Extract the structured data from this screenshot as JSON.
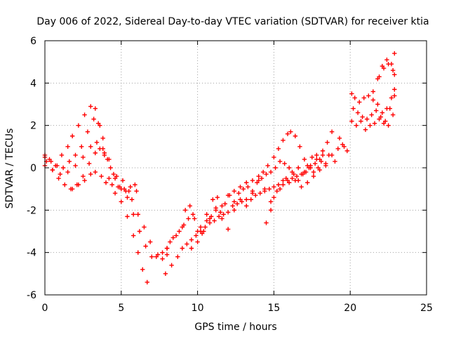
{
  "chart_data": {
    "type": "scatter",
    "title": "Day 006 of 2022, Sidereal Day-to-day VTEC variation (SDTVAR) for receiver ktia",
    "xlabel": "GPS time / hours",
    "ylabel": "SDTVAR / TECUs",
    "xlim": [
      0,
      25
    ],
    "ylim": [
      -6,
      6
    ],
    "xticks": [
      0,
      5,
      10,
      15,
      20,
      25
    ],
    "yticks": [
      -6,
      -4,
      -2,
      0,
      2,
      4,
      6
    ],
    "xtick_labels": [
      "0",
      "5",
      "10",
      "15",
      "20",
      "25"
    ],
    "ytick_labels": [
      "-6",
      "-4",
      "-2",
      "0",
      "2",
      "4",
      "6"
    ],
    "grid": true,
    "legend": "none",
    "marker": "plus",
    "color": "#ff0000",
    "series": [
      {
        "x": [
          0.0,
          0.3,
          0.7,
          1.1,
          1.5,
          1.8,
          2.2,
          2.6,
          3.0,
          3.3,
          3.6,
          3.9,
          4.2,
          4.6,
          5.0,
          5.4,
          5.8,
          6.1,
          6.4,
          6.7
        ],
        "y": [
          0.5,
          0.4,
          0.1,
          0.6,
          1.0,
          1.5,
          2.0,
          2.5,
          2.9,
          2.8,
          2.0,
          0.7,
          -0.5,
          -1.2,
          -1.6,
          -2.3,
          -3.2,
          -4.0,
          -4.8,
          -5.4
        ]
      },
      {
        "x": [
          0.0,
          0.4,
          0.8,
          1.2,
          1.6,
          2.0,
          2.4,
          2.8,
          3.2,
          3.5,
          3.8,
          4.2,
          4.6,
          5.0,
          5.4,
          5.8,
          6.2,
          6.6,
          7.0,
          7.4,
          7.7,
          8.0
        ],
        "y": [
          0.6,
          0.3,
          0.1,
          0.0,
          0.3,
          0.6,
          1.0,
          1.7,
          2.3,
          2.1,
          1.4,
          0.4,
          -0.5,
          -1.0,
          -1.4,
          -2.2,
          -3.0,
          -3.7,
          -4.2,
          -4.1,
          -4.0,
          -3.8
        ]
      },
      {
        "x": [
          0.0,
          0.5,
          1.0,
          1.5,
          2.0,
          2.5,
          3.0,
          3.4,
          3.8,
          4.1,
          4.5,
          4.9,
          5.3,
          5.7,
          6.1,
          6.5,
          6.9,
          7.3,
          7.7,
          8.0
        ],
        "y": [
          0.1,
          -0.1,
          -0.3,
          -0.2,
          0.1,
          0.5,
          1.0,
          1.2,
          0.9,
          0.4,
          -0.3,
          -0.9,
          -1.1,
          -1.5,
          -2.2,
          -2.8,
          -3.5,
          -4.2,
          -4.3,
          -4.1
        ]
      },
      {
        "x": [
          0.1,
          0.5,
          0.9,
          1.3,
          1.7,
          2.1,
          2.5,
          2.9,
          3.3,
          3.6,
          3.9,
          4.3,
          4.7,
          5.1,
          5.5,
          5.9
        ],
        "y": [
          0.3,
          -0.1,
          -0.5,
          -0.8,
          -1.0,
          -0.8,
          -0.4,
          0.2,
          0.7,
          0.9,
          0.6,
          0.0,
          -0.4,
          -0.6,
          -1.1,
          -0.8
        ]
      },
      {
        "x": [
          1.8,
          2.2,
          2.6,
          3.0,
          3.3,
          3.7,
          4.0,
          4.4,
          4.8,
          5.2,
          5.6,
          6.0
        ],
        "y": [
          -1.0,
          -0.8,
          -0.6,
          -0.3,
          -0.2,
          -0.4,
          -0.7,
          -0.8,
          -0.9,
          -1.0,
          -0.9,
          -1.1
        ]
      },
      {
        "x": [
          7.9,
          8.3,
          8.7,
          9.0,
          9.3,
          9.6,
          9.9,
          10.2,
          10.5,
          10.8,
          11.1,
          11.4,
          11.7,
          12.0,
          12.3,
          12.6,
          12.9,
          13.2,
          13.5,
          13.8,
          14.1,
          14.4,
          14.7,
          15.0,
          15.3,
          15.6,
          15.9,
          16.2,
          16.5,
          16.8,
          17.1,
          17.4,
          17.7,
          18.0
        ],
        "y": [
          -5.0,
          -4.6,
          -4.2,
          -3.8,
          -3.6,
          -3.4,
          -3.2,
          -3.0,
          -2.8,
          -2.6,
          -2.5,
          -2.3,
          -2.2,
          -2.1,
          -1.8,
          -1.7,
          -1.6,
          -1.5,
          -1.5,
          -1.3,
          -1.2,
          -1.1,
          -1.0,
          -0.9,
          -0.8,
          -0.6,
          -0.6,
          -0.5,
          -0.4,
          -0.3,
          -0.2,
          0.0,
          0.2,
          0.4
        ]
      },
      {
        "x": [
          8.0,
          8.4,
          8.8,
          9.1,
          9.4,
          9.7,
          10.0,
          10.3,
          10.6,
          10.9,
          11.2,
          11.5,
          11.8,
          12.1,
          12.4,
          12.7,
          13.0,
          13.3,
          13.6,
          13.9,
          14.2,
          14.5,
          14.8,
          15.1,
          15.4,
          15.7,
          16.0,
          16.3,
          16.6,
          16.9,
          17.2,
          17.5,
          17.8,
          18.1,
          18.4
        ],
        "y": [
          -3.8,
          -3.3,
          -3.0,
          -2.7,
          -2.4,
          -2.2,
          -3.0,
          -3.1,
          -2.5,
          -2.3,
          -1.9,
          -2.1,
          -1.7,
          -1.3,
          -1.6,
          -1.2,
          -1.0,
          -0.9,
          -1.1,
          -0.7,
          -0.5,
          -0.3,
          -0.2,
          0.0,
          0.3,
          0.2,
          0.0,
          -0.3,
          -0.6,
          -0.3,
          0.1,
          0.5,
          0.6,
          0.3,
          0.1
        ]
      },
      {
        "x": [
          8.2,
          8.6,
          9.0,
          9.2,
          9.5,
          9.8,
          10.2,
          10.6,
          11.0,
          11.3,
          11.6,
          12.0,
          12.4,
          12.8,
          13.2,
          13.6,
          14.0,
          14.3,
          14.6,
          15.0,
          15.3,
          15.6,
          15.9,
          16.1,
          16.4,
          16.7,
          17.0,
          17.3,
          17.6,
          17.9,
          18.2,
          18.5,
          18.8
        ],
        "y": [
          -3.5,
          -3.2,
          -2.8,
          -2.0,
          -1.8,
          -2.4,
          -2.8,
          -2.2,
          -1.5,
          -1.4,
          -1.8,
          -1.3,
          -1.1,
          -0.9,
          -0.7,
          -0.6,
          -0.4,
          -0.2,
          0.1,
          0.5,
          0.9,
          1.3,
          1.6,
          1.7,
          1.5,
          1.0,
          0.4,
          0.0,
          -0.2,
          0.0,
          0.6,
          1.2,
          1.7
        ]
      },
      {
        "x": [
          9.6,
          10.0,
          10.4,
          10.8,
          11.2,
          11.6,
          12.0,
          12.4,
          12.8,
          13.2,
          13.6,
          14.0,
          14.4,
          14.8,
          15.2,
          15.6,
          16.0,
          16.4,
          16.8,
          17.2,
          17.6,
          18.0,
          18.4,
          18.8,
          19.2,
          19.5,
          19.8
        ],
        "y": [
          -3.8,
          -3.5,
          -3.0,
          -2.4,
          -2.0,
          -2.4,
          -2.9,
          -2.0,
          -1.5,
          -1.8,
          -1.2,
          -0.6,
          -1.0,
          -1.6,
          -1.1,
          -0.8,
          -0.7,
          -0.6,
          -0.9,
          -0.7,
          -0.4,
          -0.1,
          0.2,
          0.6,
          0.9,
          1.1,
          0.8
        ]
      },
      {
        "x": [
          14.5,
          14.8,
          15.0,
          15.4,
          15.8,
          16.2,
          16.6,
          17.0,
          17.4,
          17.8,
          18.2,
          18.6,
          19.0,
          19.3,
          19.6
        ],
        "y": [
          -2.6,
          -2.0,
          -1.4,
          -1.0,
          -0.5,
          -0.2,
          0.0,
          -0.2,
          0.1,
          0.4,
          0.8,
          0.6,
          0.3,
          1.4,
          1.0
        ]
      },
      {
        "x": [
          20.1,
          20.3,
          20.6,
          20.9,
          21.2,
          21.5,
          21.8,
          22.1,
          22.4,
          22.7,
          22.9
        ],
        "y": [
          3.5,
          3.3,
          3.1,
          3.3,
          3.4,
          3.2,
          3.0,
          2.6,
          2.8,
          3.3,
          3.7
        ]
      },
      {
        "x": [
          20.2,
          20.5,
          20.8,
          21.1,
          21.4,
          21.7,
          22.0,
          22.3,
          22.6,
          22.9
        ],
        "y": [
          2.8,
          2.6,
          2.4,
          2.3,
          2.5,
          2.7,
          2.4,
          2.2,
          2.8,
          3.4
        ]
      },
      {
        "x": [
          20.1,
          20.4,
          20.7,
          21.0,
          21.3,
          21.6,
          21.9,
          22.2,
          22.5,
          22.8
        ],
        "y": [
          2.2,
          2.0,
          2.2,
          1.8,
          2.0,
          2.1,
          2.3,
          2.1,
          2.0,
          2.5
        ]
      },
      {
        "x": [
          21.5,
          21.8,
          22.1,
          22.4,
          22.7,
          22.9
        ],
        "y": [
          3.6,
          4.2,
          4.8,
          5.1,
          4.9,
          5.4
        ]
      },
      {
        "x": [
          21.9,
          22.2,
          22.5,
          22.8,
          22.9
        ],
        "y": [
          4.3,
          4.7,
          4.9,
          4.6,
          4.4
        ]
      }
    ]
  }
}
